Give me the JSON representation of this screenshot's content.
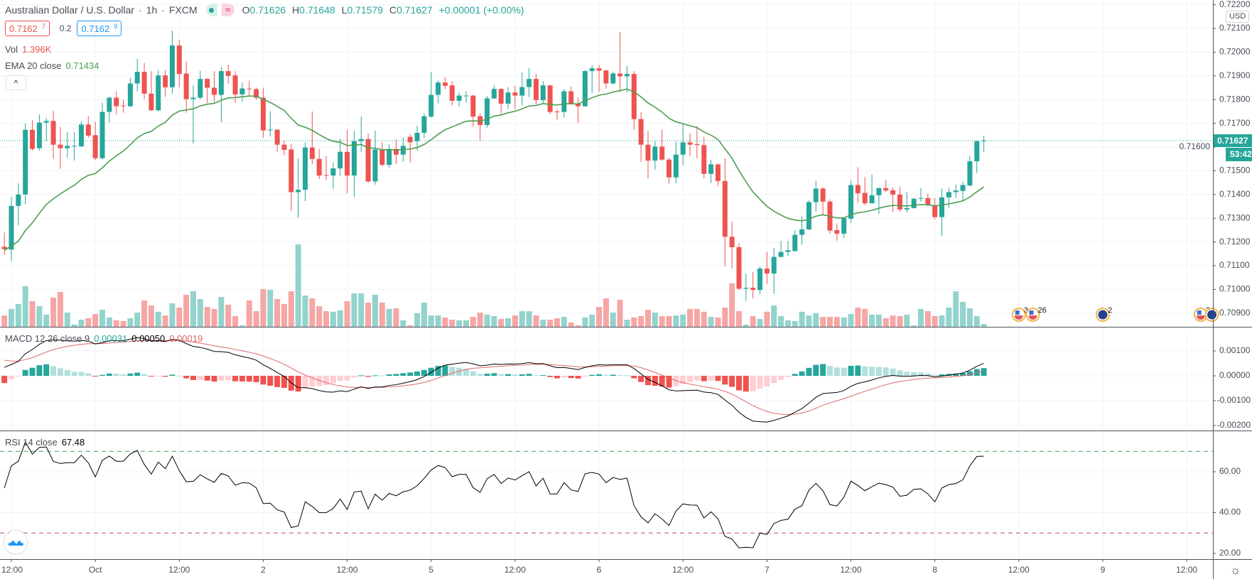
{
  "header": {
    "symbol": "Australian Dollar / U.S. Dollar",
    "sep": "·",
    "interval": "1h",
    "exchange": "FXCM",
    "status_icon": "≈",
    "ohlc": {
      "o_label": "O",
      "o": "0.71626",
      "h_label": "H",
      "h": "0.71648",
      "l_label": "L",
      "l": "0.71579",
      "c_label": "C",
      "c": "0.71627",
      "change": "+0.00001 (+0.00%)"
    }
  },
  "quote": {
    "bid": "0.7162",
    "bid_sup": "7",
    "spread": "0.2",
    "ask": "0.7162",
    "ask_sup": "9"
  },
  "legends": {
    "vol_label": "Vol",
    "vol_value": "1.396K",
    "ema_label": "EMA 20 close",
    "ema_value": "0.71434",
    "collapse_icon": "^",
    "macd_label": "MACD 12 26 close 9",
    "macd_hist": "0.00031",
    "macd_line": "0.00050",
    "macd_signal": "0.00019",
    "rsi_label": "RSI 14 close",
    "rsi_value": "67.48"
  },
  "price_axis": {
    "currency": "USD",
    "ticks": [
      "0.72200",
      "0.72100",
      "0.72000",
      "0.71900",
      "0.71800",
      "0.71700",
      "0.71600",
      "0.71500",
      "0.71400",
      "0.71300",
      "0.71200",
      "0.71100",
      "0.71000",
      "0.70900"
    ],
    "last_price": "0.71627",
    "last_price_value": 0.71627,
    "countdown": "53:42"
  },
  "macd_axis": {
    "ticks": [
      "0.00100",
      "0.00000",
      "-0.00100",
      "-0.00200"
    ]
  },
  "rsi_axis": {
    "ticks": [
      "60.00",
      "40.00",
      "20.00"
    ],
    "upper_band": 70,
    "lower_band": 30
  },
  "time_axis": {
    "labels": [
      "12:00",
      "Oct",
      "12:00",
      "2",
      "12:00",
      "5",
      "12:00",
      "6",
      "12:00",
      "7",
      "12:00",
      "8",
      "12:00",
      "9",
      "12:00"
    ]
  },
  "events": [
    {
      "country": "US",
      "count": "3",
      "bar_index": 144
    },
    {
      "country": "US",
      "count": "26",
      "bar_index": 146
    },
    {
      "country": "AU",
      "count": "2",
      "bar_index": 156
    },
    {
      "country": "US",
      "count": "2",
      "bar_index": 170
    },
    {
      "country": "AU",
      "count": "",
      "bar_index": 171.6
    }
  ],
  "colors": {
    "up": "#26a69a",
    "down": "#ef5350",
    "vol_up": "#93d3cd",
    "vol_down": "#f5a6a5",
    "ema": "#4e9e52",
    "macd": "#000000",
    "signal": "#e06666",
    "hist_up_strong": "#26a69a",
    "hist_up_weak": "#b2dfdb",
    "hist_down_strong": "#ef5350",
    "hist_down_weak": "#ffcdd2",
    "rsi": "#000000",
    "band_upper": "#4e9e52",
    "band_lower": "#c0504d",
    "grid": "#f0f3fa",
    "accent": "#26a69a"
  },
  "chart_data": {
    "type": "candlestick",
    "title": "Australian Dollar / U.S. Dollar · 1h · FXCM",
    "ylim": [
      0.7086,
      0.7222
    ],
    "fields": [
      "open",
      "high",
      "low",
      "close"
    ],
    "candles": [
      [
        0.7118,
        0.7124,
        0.71145,
        0.7117
      ],
      [
        0.71168,
        0.7139,
        0.7112,
        0.71352
      ],
      [
        0.71352,
        0.71447,
        0.7127,
        0.714
      ],
      [
        0.714,
        0.717,
        0.71358,
        0.71673
      ],
      [
        0.71673,
        0.71712,
        0.71585,
        0.71592
      ],
      [
        0.71595,
        0.71738,
        0.71585,
        0.71703
      ],
      [
        0.71703,
        0.71722,
        0.71625,
        0.7171
      ],
      [
        0.7171,
        0.71752,
        0.7155,
        0.7161
      ],
      [
        0.7161,
        0.71685,
        0.71508,
        0.71595
      ],
      [
        0.71595,
        0.71663,
        0.71555,
        0.71605
      ],
      [
        0.71605,
        0.71663,
        0.71543,
        0.71605
      ],
      [
        0.71603,
        0.71708,
        0.716,
        0.71695
      ],
      [
        0.71695,
        0.7173,
        0.7164,
        0.71648
      ],
      [
        0.7165,
        0.71707,
        0.71545,
        0.71553
      ],
      [
        0.71553,
        0.71787,
        0.71548,
        0.71748
      ],
      [
        0.71748,
        0.71812,
        0.71702,
        0.71808
      ],
      [
        0.71808,
        0.71835,
        0.71738,
        0.71772
      ],
      [
        0.71775,
        0.718,
        0.71745,
        0.71772
      ],
      [
        0.71772,
        0.71892,
        0.71768,
        0.71868
      ],
      [
        0.71868,
        0.71972,
        0.71835,
        0.71917
      ],
      [
        0.71917,
        0.71955,
        0.71802,
        0.71825
      ],
      [
        0.71825,
        0.7192,
        0.71752,
        0.71755
      ],
      [
        0.71755,
        0.71925,
        0.7175,
        0.71902
      ],
      [
        0.71902,
        0.71925,
        0.71812,
        0.71852
      ],
      [
        0.71852,
        0.7209,
        0.71825,
        0.72028
      ],
      [
        0.72028,
        0.72052,
        0.71852,
        0.71908
      ],
      [
        0.7191,
        0.7196,
        0.71745,
        0.71802
      ],
      [
        0.71802,
        0.7186,
        0.71615,
        0.71808
      ],
      [
        0.71808,
        0.71922,
        0.71802,
        0.71887
      ],
      [
        0.71887,
        0.7189,
        0.71785,
        0.7185
      ],
      [
        0.7185,
        0.7192,
        0.7179,
        0.7182
      ],
      [
        0.7182,
        0.71938,
        0.71705,
        0.7192
      ],
      [
        0.7192,
        0.71947,
        0.71868,
        0.719
      ],
      [
        0.71902,
        0.7192,
        0.71787,
        0.71822
      ],
      [
        0.71822,
        0.71872,
        0.7179,
        0.71847
      ],
      [
        0.71847,
        0.7188,
        0.71818,
        0.71844
      ],
      [
        0.71844,
        0.7185,
        0.71798,
        0.71808
      ],
      [
        0.71808,
        0.7185,
        0.7164,
        0.7167
      ],
      [
        0.7167,
        0.71752,
        0.71645,
        0.71673
      ],
      [
        0.71673,
        0.71675,
        0.7158,
        0.7161
      ],
      [
        0.7161,
        0.71627,
        0.71565,
        0.71588
      ],
      [
        0.7159,
        0.71613,
        0.7133,
        0.7141
      ],
      [
        0.7141,
        0.71553,
        0.71302,
        0.7142
      ],
      [
        0.7142,
        0.7162,
        0.71372,
        0.71598
      ],
      [
        0.71598,
        0.7175,
        0.71528,
        0.7155
      ],
      [
        0.7155,
        0.71592,
        0.71465,
        0.7148
      ],
      [
        0.71482,
        0.71562,
        0.71462,
        0.7148
      ],
      [
        0.7148,
        0.71535,
        0.71425,
        0.7151
      ],
      [
        0.7151,
        0.71635,
        0.71478,
        0.7158
      ],
      [
        0.7158,
        0.71673,
        0.71405,
        0.7148
      ],
      [
        0.7148,
        0.71667,
        0.7139,
        0.71625
      ],
      [
        0.71625,
        0.71728,
        0.7158,
        0.71634
      ],
      [
        0.71634,
        0.71658,
        0.7145,
        0.71455
      ],
      [
        0.71455,
        0.7167,
        0.71442,
        0.7159
      ],
      [
        0.7159,
        0.7162,
        0.71518,
        0.71525
      ],
      [
        0.71525,
        0.71612,
        0.71513,
        0.71592
      ],
      [
        0.71592,
        0.71632,
        0.71528,
        0.71568
      ],
      [
        0.71568,
        0.7164,
        0.71538,
        0.71605
      ],
      [
        0.71643,
        0.71655,
        0.71535,
        0.7162
      ],
      [
        0.71625,
        0.7169,
        0.71585,
        0.7166
      ],
      [
        0.7166,
        0.71742,
        0.71638,
        0.7173
      ],
      [
        0.71728,
        0.71917,
        0.71725,
        0.7182
      ],
      [
        0.7182,
        0.7188,
        0.71785,
        0.71872
      ],
      [
        0.71872,
        0.71895,
        0.71845,
        0.71858
      ],
      [
        0.7186,
        0.71878,
        0.71775,
        0.71795
      ],
      [
        0.71795,
        0.7183,
        0.7177,
        0.71817
      ],
      [
        0.71817,
        0.71835,
        0.71787,
        0.71817
      ],
      [
        0.71817,
        0.7182,
        0.71685,
        0.71728
      ],
      [
        0.7173,
        0.71742,
        0.71625,
        0.71693
      ],
      [
        0.71693,
        0.71815,
        0.71682,
        0.71805
      ],
      [
        0.71805,
        0.7186,
        0.71802,
        0.71845
      ],
      [
        0.71845,
        0.71848,
        0.7174,
        0.71783
      ],
      [
        0.71783,
        0.71853,
        0.71762,
        0.7183
      ],
      [
        0.7183,
        0.71858,
        0.71758,
        0.71817
      ],
      [
        0.71817,
        0.71915,
        0.71775,
        0.71853
      ],
      [
        0.71853,
        0.71932,
        0.7181,
        0.71887
      ],
      [
        0.71887,
        0.71908,
        0.7178,
        0.71798
      ],
      [
        0.71798,
        0.71878,
        0.71785,
        0.7186
      ],
      [
        0.7186,
        0.71862,
        0.71738,
        0.71748
      ],
      [
        0.7175,
        0.7176,
        0.71715,
        0.71748
      ],
      [
        0.71748,
        0.71845,
        0.71725,
        0.71835
      ],
      [
        0.71835,
        0.71855,
        0.7178,
        0.71783
      ],
      [
        0.71783,
        0.71808,
        0.71702,
        0.71772
      ],
      [
        0.71772,
        0.71925,
        0.7177,
        0.7192
      ],
      [
        0.7192,
        0.71945,
        0.71828,
        0.71932
      ],
      [
        0.71932,
        0.71945,
        0.71832,
        0.71922
      ],
      [
        0.71923,
        0.71925,
        0.71845,
        0.71868
      ],
      [
        0.71868,
        0.71918,
        0.71865,
        0.7191
      ],
      [
        0.7191,
        0.72085,
        0.71832,
        0.71898
      ],
      [
        0.71898,
        0.71942,
        0.7183,
        0.71908
      ],
      [
        0.71908,
        0.7192,
        0.71672,
        0.71718
      ],
      [
        0.71718,
        0.71747,
        0.71538,
        0.7161
      ],
      [
        0.7161,
        0.71668,
        0.71468,
        0.71543
      ],
      [
        0.71543,
        0.71625,
        0.71505,
        0.71602
      ],
      [
        0.71602,
        0.71673,
        0.71543,
        0.71547
      ],
      [
        0.71547,
        0.71555,
        0.71445,
        0.71472
      ],
      [
        0.71472,
        0.71622,
        0.71448,
        0.71568
      ],
      [
        0.71568,
        0.71695,
        0.71525,
        0.7162
      ],
      [
        0.7162,
        0.71658,
        0.71562,
        0.7161
      ],
      [
        0.71612,
        0.71688,
        0.71553,
        0.71608
      ],
      [
        0.71608,
        0.71643,
        0.71468,
        0.71487
      ],
      [
        0.71487,
        0.71547,
        0.71448,
        0.71527
      ],
      [
        0.71527,
        0.7153,
        0.71435,
        0.71457
      ],
      [
        0.71457,
        0.71553,
        0.71097,
        0.71222
      ],
      [
        0.71222,
        0.71285,
        0.71088,
        0.71178
      ],
      [
        0.71178,
        0.71195,
        0.70998,
        0.71003
      ],
      [
        0.71003,
        0.71068,
        0.70952,
        0.71007
      ],
      [
        0.71007,
        0.71073,
        0.70962,
        0.70998
      ],
      [
        0.70998,
        0.71097,
        0.7098,
        0.71088
      ],
      [
        0.71088,
        0.71158,
        0.71022,
        0.71067
      ],
      [
        0.71067,
        0.71175,
        0.70982,
        0.71137
      ],
      [
        0.71137,
        0.71205,
        0.71135,
        0.71158
      ],
      [
        0.71158,
        0.71205,
        0.7114,
        0.71165
      ],
      [
        0.71162,
        0.7125,
        0.71158,
        0.7123
      ],
      [
        0.7123,
        0.71308,
        0.71188,
        0.71253
      ],
      [
        0.71253,
        0.71375,
        0.7125,
        0.71368
      ],
      [
        0.71368,
        0.71458,
        0.71328,
        0.71425
      ],
      [
        0.71425,
        0.7143,
        0.71315,
        0.7137
      ],
      [
        0.7137,
        0.7138,
        0.71235,
        0.71248
      ],
      [
        0.7125,
        0.71278,
        0.71205,
        0.71235
      ],
      [
        0.71235,
        0.71305,
        0.71217,
        0.713
      ],
      [
        0.71298,
        0.71458,
        0.7128,
        0.7144
      ],
      [
        0.7144,
        0.71515,
        0.71365,
        0.71405
      ],
      [
        0.71407,
        0.71473,
        0.71355,
        0.71363
      ],
      [
        0.71363,
        0.71485,
        0.71362,
        0.71397
      ],
      [
        0.71397,
        0.7143,
        0.71318,
        0.71427
      ],
      [
        0.71427,
        0.71462,
        0.7141,
        0.71417
      ],
      [
        0.71418,
        0.7143,
        0.71327,
        0.714
      ],
      [
        0.714,
        0.71433,
        0.71327,
        0.71337
      ],
      [
        0.71337,
        0.7141,
        0.71325,
        0.71343
      ],
      [
        0.71343,
        0.71387,
        0.7134,
        0.71382
      ],
      [
        0.71382,
        0.71427,
        0.7137,
        0.71385
      ],
      [
        0.71385,
        0.71403,
        0.7135,
        0.71355
      ],
      [
        0.71355,
        0.71385,
        0.71295,
        0.71305
      ],
      [
        0.71305,
        0.71425,
        0.71225,
        0.71388
      ],
      [
        0.71388,
        0.71428,
        0.71345,
        0.7141
      ],
      [
        0.7141,
        0.71442,
        0.71385,
        0.71417
      ],
      [
        0.71415,
        0.71454,
        0.71373,
        0.7144
      ],
      [
        0.71438,
        0.71562,
        0.71435,
        0.7154
      ],
      [
        0.7154,
        0.71627,
        0.7149,
        0.71625
      ],
      [
        0.71626,
        0.71648,
        0.71579,
        0.71627
      ]
    ],
    "volume_k": [
      5.6,
      8.8,
      11.2,
      20.0,
      12.6,
      10.2,
      6.0,
      14.4,
      17.2,
      7.0,
      1.1,
      3.5,
      4.2,
      6.3,
      8.4,
      4.6,
      3.2,
      2.8,
      4.2,
      7.0,
      13.0,
      10.5,
      7.4,
      5.6,
      11.6,
      9.5,
      15.8,
      17.5,
      13.7,
      9.8,
      8.8,
      14.7,
      10.9,
      5.3,
      0.7,
      13.0,
      7.7,
      18.6,
      18.2,
      13.7,
      11.2,
      17.5,
      40.6,
      15.4,
      14.0,
      10.2,
      7.7,
      7.4,
      8.1,
      12.6,
      16.5,
      16.5,
      11.9,
      15.8,
      11.9,
      8.8,
      9.1,
      3.2,
      0.7,
      6.7,
      11.9,
      5.6,
      5.6,
      4.6,
      3.5,
      3.2,
      3.2,
      4.9,
      7.0,
      6.0,
      5.3,
      3.9,
      4.2,
      5.6,
      7.7,
      7.7,
      5.6,
      3.5,
      3.5,
      4.2,
      4.9,
      2.1,
      0.7,
      4.6,
      6.0,
      9.8,
      14.0,
      7.0,
      13.3,
      3.5,
      4.6,
      5.3,
      8.4,
      7.0,
      5.3,
      5.3,
      5.6,
      6.0,
      8.8,
      8.8,
      7.4,
      4.9,
      4.6,
      9.5,
      21.4,
      7.7,
      1.1,
      5.3,
      3.9,
      7.4,
      10.5,
      5.3,
      3.2,
      2.8,
      7.4,
      5.6,
      6.7,
      4.9,
      4.9,
      4.9,
      4.6,
      6.3,
      9.5,
      8.8,
      6.0,
      6.0,
      4.2,
      5.6,
      5.3,
      6.0,
      0.7,
      8.8,
      7.7,
      5.3,
      5.6,
      9.5,
      17.5,
      12.3,
      9.1,
      5.3,
      1.396
    ],
    "indicators": {
      "ema_period": 20,
      "ema_seed": 0.71165,
      "macd_fast": 12,
      "macd_slow": 26,
      "macd_signal": 9,
      "ema12_seed": 0.71174,
      "ema26_seed": 0.7114,
      "signal_seed": 0.00063,
      "rsi_period": 14,
      "rsi_avg_gain_seed": 0.00025,
      "rsi_avg_loss_seed": 0.00023
    }
  }
}
